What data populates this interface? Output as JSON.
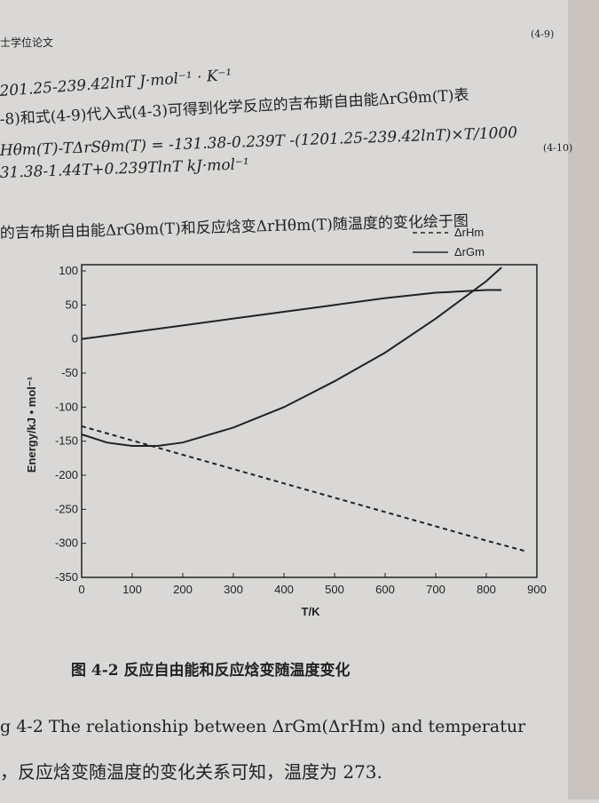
{
  "page_text": {
    "header": "士学位论文",
    "lines": [
      "201.25-239.42lnT   J·mol⁻¹ · K⁻¹",
      "-8)和式(4-9)代入式(4-3)可得到化学反应的吉布斯自由能ΔrGθm(T)表",
      "Hθm(T)-TΔrSθm(T) = -131.38-0.239T -(1201.25-239.42lnT)×T/1000",
      "31.38-1.44T+0.239TlnT    kJ·mol⁻¹",
      "的吉布斯自由能ΔrGθm(T)和反应焓变ΔrHθm(T)随温度的变化绘于图"
    ],
    "eq_numbers": [
      "(4-9)",
      "(4-10)"
    ],
    "caption_en": "g 4-2 The relationship between  ΔrGm(ΔrHm) and temperatur",
    "footer": "，反应焓变随温度的变化关系可知，温度为 273."
  },
  "chart_data": {
    "type": "line",
    "title": "图 4-2 反应自由能和反应焓变随温度变化",
    "x_label": "T/K",
    "y_label": "Energy/kJ • mol⁻¹",
    "xlim": [
      0,
      900
    ],
    "xticks": [
      0,
      100,
      200,
      300,
      400,
      500,
      600,
      700,
      800,
      900
    ],
    "ylim": [
      -350,
      100
    ],
    "yticks": [
      -350,
      -300,
      -250,
      -200,
      -150,
      -100,
      -50,
      0,
      50,
      100
    ],
    "legend": "upper right",
    "series": [
      {
        "name": "ΔrHm",
        "color": "#222222",
        "style": "dashed",
        "x": [
          0,
          100,
          200,
          300,
          400,
          500,
          600,
          700,
          800,
          880
        ],
        "values": [
          -128,
          -149,
          -170,
          -191,
          -212,
          -233,
          -254,
          -275,
          -296,
          -312
        ]
      },
      {
        "name": "ΔrGm",
        "color": "#222222",
        "style": "solid",
        "x": [
          0,
          50,
          100,
          150,
          200,
          300,
          400,
          500,
          600,
          700,
          800,
          830
        ],
        "values": [
          -140,
          -152,
          -157,
          -157,
          -152,
          -130,
          -100,
          -62,
          -20,
          30,
          85,
          105
        ]
      },
      {
        "color": "#222222",
        "style": "solid",
        "x": [
          0,
          100,
          200,
          300,
          400,
          500,
          600,
          700,
          800,
          830
        ],
        "values": [
          0,
          10,
          20,
          30,
          40,
          50,
          60,
          68,
          72,
          72
        ]
      }
    ]
  }
}
